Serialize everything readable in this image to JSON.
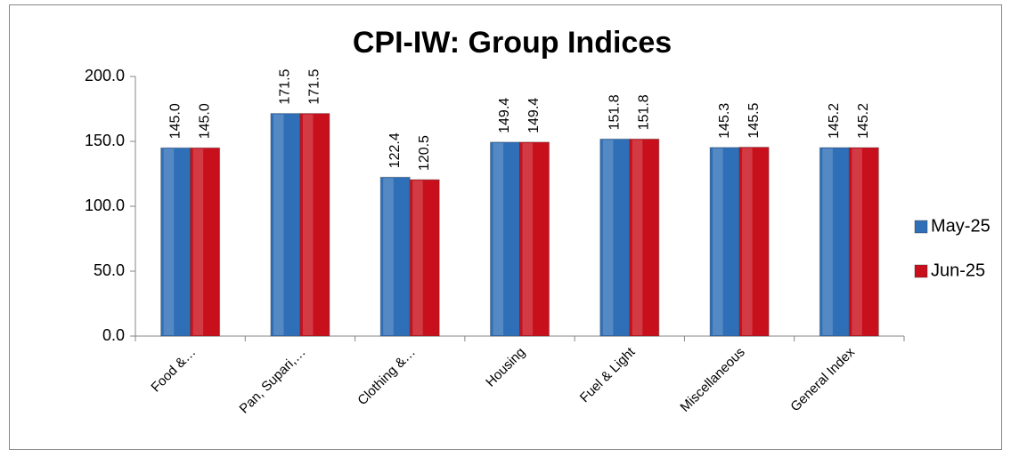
{
  "chart_data": {
    "type": "bar",
    "title": "CPI-IW: Group Indices",
    "categories": [
      "Food &…",
      "Pan, Supari,…",
      "Clothing &…",
      "Housing",
      "Fuel & Light",
      "Miscellaneous",
      "General Index"
    ],
    "series": [
      {
        "name": "May-25",
        "color": "#2f6fb7",
        "values": [
          145.0,
          171.5,
          122.4,
          149.4,
          151.8,
          145.3,
          145.2
        ],
        "value_labels": [
          "145.0",
          "171.5",
          "122.4",
          "149.4",
          "151.8",
          "145.3",
          "145.2"
        ]
      },
      {
        "name": "Jun-25",
        "color": "#c8101c",
        "values": [
          145.0,
          171.5,
          120.5,
          149.4,
          151.8,
          145.5,
          145.2
        ],
        "value_labels": [
          "145.0",
          "171.5",
          "120.5",
          "149.4",
          "151.8",
          "145.5",
          "145.2"
        ]
      }
    ],
    "ylim": [
      0,
      200
    ],
    "yticks": [
      {
        "value": 0,
        "label": "0.0"
      },
      {
        "value": 50,
        "label": "50.0"
      },
      {
        "value": 100,
        "label": "100.0"
      },
      {
        "value": 150,
        "label": "150.0"
      },
      {
        "value": 200,
        "label": "200.0"
      }
    ],
    "grid": false,
    "legend": "right"
  }
}
